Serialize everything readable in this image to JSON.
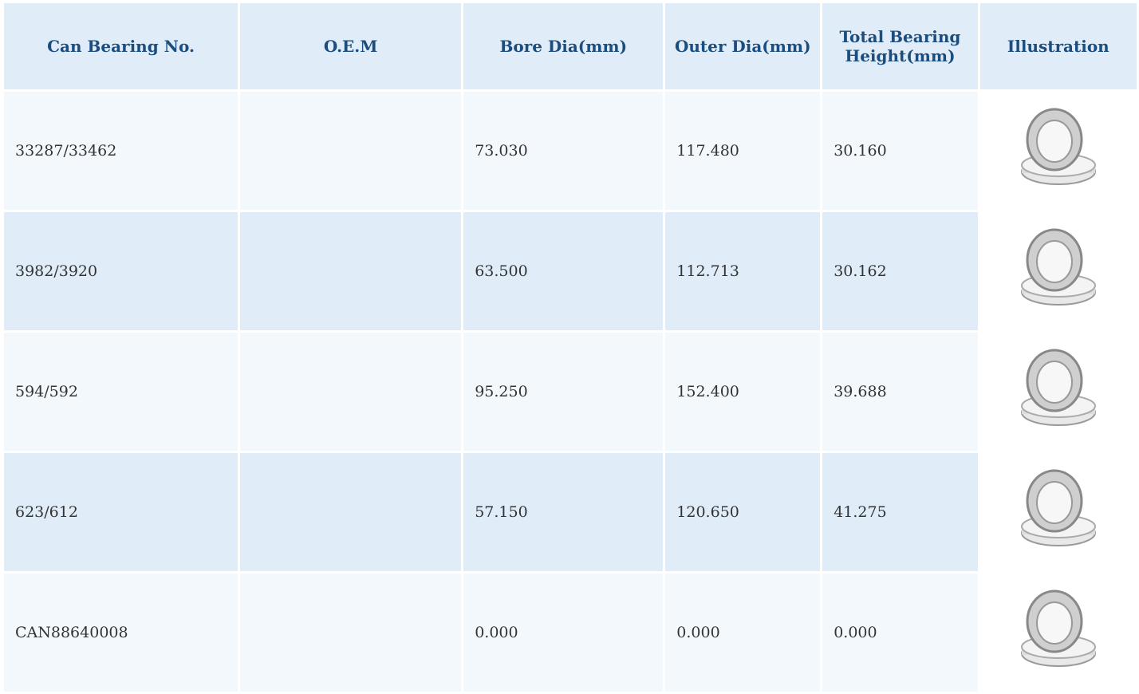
{
  "table": {
    "headers": [
      "Can Bearing No.",
      "O.E.M",
      "Bore Dia(mm)",
      "Outer Dia(mm)",
      "Total Bearing Height(mm)",
      "Illustration"
    ],
    "rows": [
      {
        "bearing_no": "33287/33462",
        "bore": "73.030",
        "outer": "117.480",
        "height": "30.160"
      },
      {
        "bearing_no": "3982/3920",
        "bore": "63.500",
        "outer": "112.713",
        "height": "30.162"
      },
      {
        "bearing_no": "594/592",
        "bore": "95.250",
        "outer": "152.400",
        "height": "39.688"
      },
      {
        "bearing_no": "623/612",
        "bore": "57.150",
        "outer": "120.650",
        "height": "41.275"
      },
      {
        "bearing_no": "CAN88640008",
        "bore": "0.000",
        "outer": "0.000",
        "height": "0.000"
      }
    ]
  }
}
